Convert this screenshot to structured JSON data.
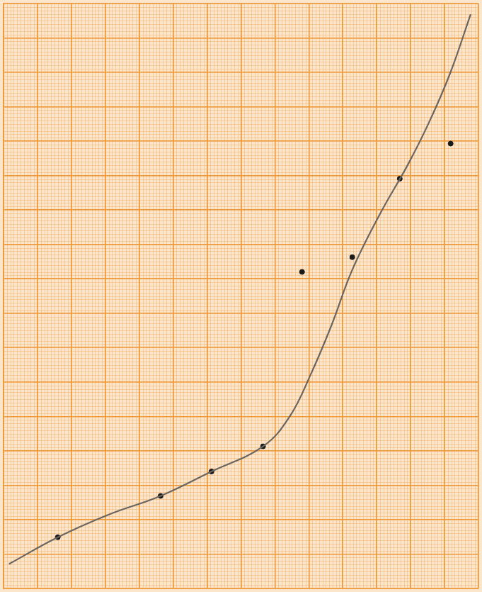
{
  "chart_data": {
    "type": "scatter",
    "xlim": [
      0,
      140
    ],
    "ylim": [
      0,
      170
    ],
    "xticks": [
      0,
      10,
      20,
      30,
      40,
      50,
      60,
      70,
      80,
      90,
      100,
      110,
      120,
      130,
      140
    ],
    "yticks": [
      0,
      10,
      20,
      30,
      40,
      50,
      60,
      70,
      80,
      90,
      100,
      110,
      120,
      130,
      140,
      150,
      160,
      170
    ],
    "grid": true,
    "tick_labels": false,
    "series": [
      {
        "type": "line",
        "color": "#6b6560",
        "line_style": "solid",
        "x": [
          1.6,
          16.0,
          30.8,
          46.3,
          61.3,
          76.5,
          84.3,
          90.5,
          96.6,
          102.8,
          111.0,
          119.2,
          125.4,
          131.6,
          137.7
        ],
        "values": [
          7.1,
          14.9,
          21.4,
          26.9,
          34.0,
          41.3,
          49.9,
          62.1,
          76.3,
          92.6,
          108.9,
          123.2,
          135.4,
          149.6,
          166.9
        ]
      },
      {
        "type": "scatter",
        "color": "#1a1a1a",
        "marker": "circle",
        "x": [
          16.0,
          46.3,
          61.3,
          76.5,
          88.0,
          102.8,
          116.8,
          131.8
        ],
        "values": [
          14.9,
          26.9,
          34.0,
          41.3,
          92.0,
          96.3,
          119.1,
          129.3
        ]
      }
    ]
  }
}
